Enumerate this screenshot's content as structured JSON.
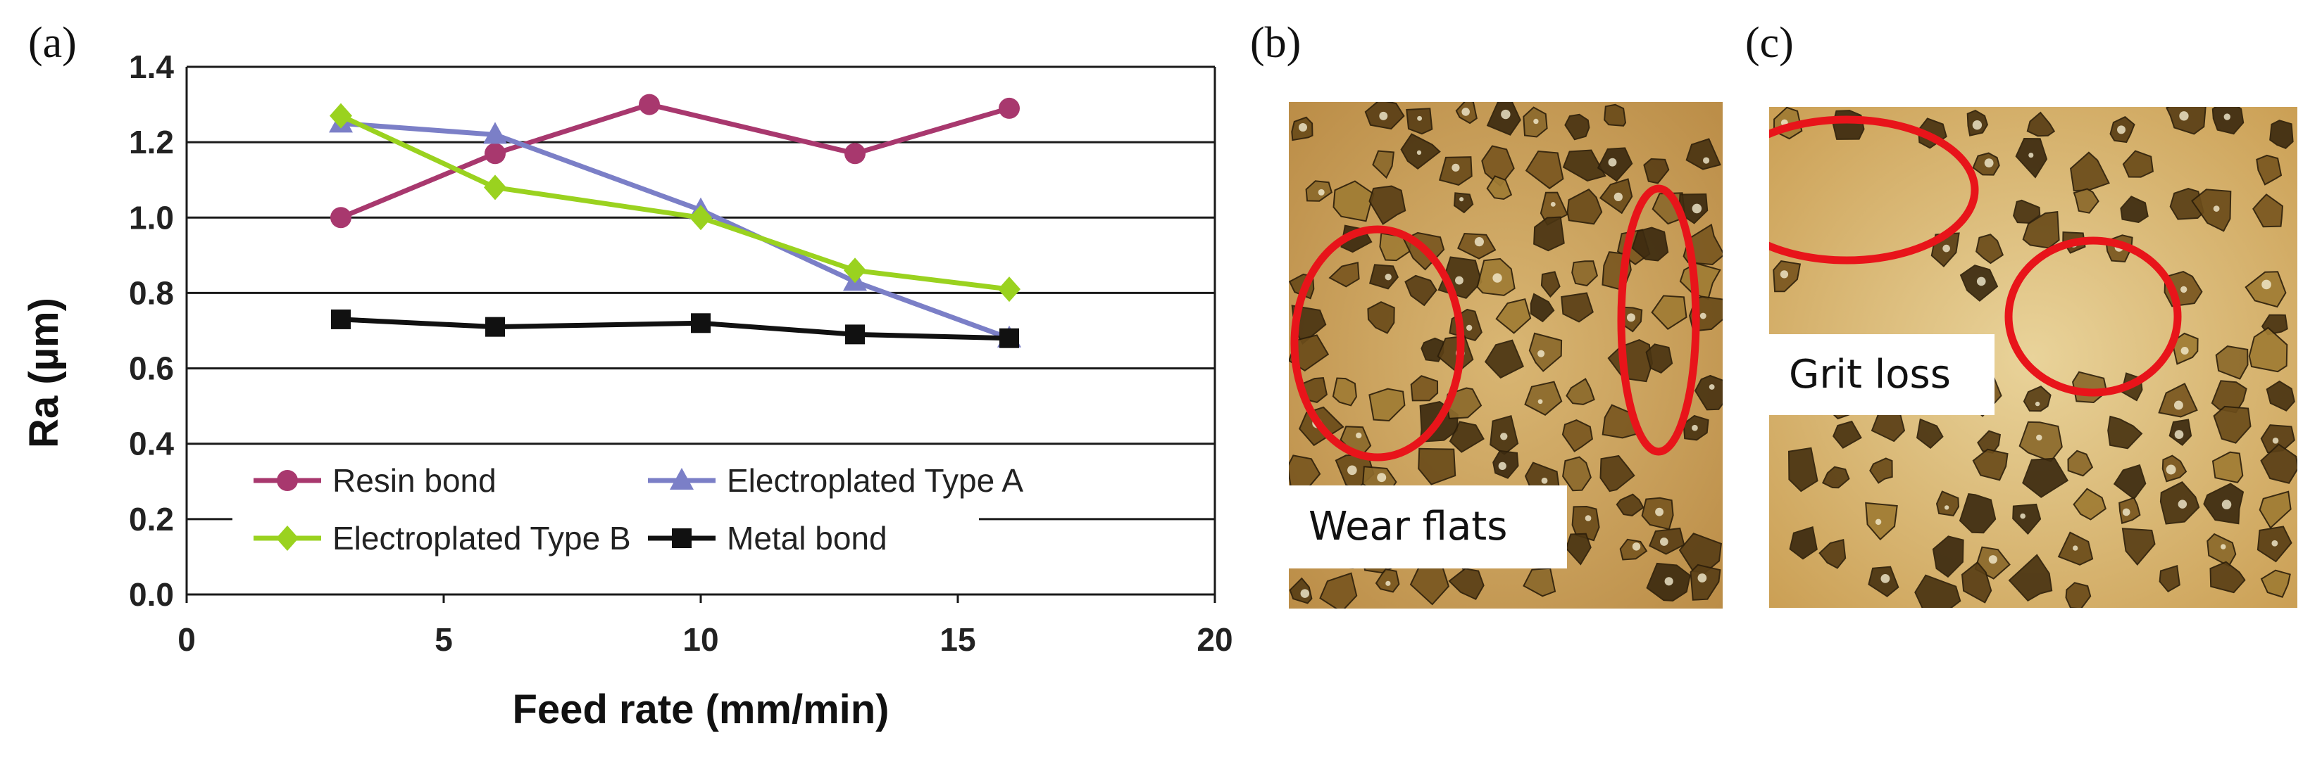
{
  "panels": {
    "a": "(a)",
    "b": "(b)",
    "c": "(c)"
  },
  "chart_data": {
    "type": "line",
    "title": "",
    "xlabel": "Feed rate (mm/min)",
    "ylabel": "Ra (µm)",
    "xlim": [
      0,
      20
    ],
    "ylim": [
      0.0,
      1.4
    ],
    "xticks": [
      "0",
      "5",
      "10",
      "15",
      "20"
    ],
    "yticks": [
      "0.0",
      "0.2",
      "0.4",
      "0.6",
      "0.8",
      "1.0",
      "1.2",
      "1.4"
    ],
    "grid": "horizontal",
    "legend_position": "bottom",
    "series": [
      {
        "name": "Resin bond",
        "color": "#a8386e",
        "marker": "circle",
        "x": [
          3,
          6,
          9,
          13,
          16
        ],
        "y": [
          1.0,
          1.17,
          1.3,
          1.17,
          1.29
        ]
      },
      {
        "name": "Electroplated Type A",
        "color": "#7b7fc7",
        "marker": "triangle",
        "x": [
          3,
          6,
          10,
          13,
          16
        ],
        "y": [
          1.25,
          1.22,
          1.02,
          0.83,
          0.68
        ]
      },
      {
        "name": "Electroplated Type B",
        "color": "#9ad21f",
        "marker": "diamond",
        "x": [
          3,
          6,
          10,
          13,
          16
        ],
        "y": [
          1.27,
          1.08,
          1.0,
          0.86,
          0.81
        ]
      },
      {
        "name": "Metal bond",
        "color": "#111111",
        "marker": "square",
        "x": [
          3,
          6,
          10,
          13,
          16
        ],
        "y": [
          0.73,
          0.71,
          0.72,
          0.69,
          0.68
        ]
      }
    ]
  },
  "micrographs": {
    "b_caption": "Wear flats",
    "c_caption": "Grit loss",
    "highlight_color": "#e8141a"
  }
}
